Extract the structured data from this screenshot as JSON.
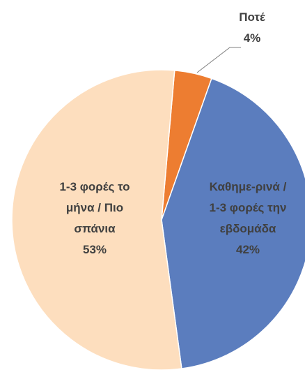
{
  "chart_data": {
    "type": "pie",
    "categories": [
      "Ποτέ",
      "Καθημε-ρινά / 1-3 φορές την εβδομάδα",
      "1-3 φορές το μήνα / Πιο σπάνια"
    ],
    "values": [
      4,
      42,
      53
    ],
    "value_labels": [
      "4%",
      "42%",
      "53%"
    ],
    "colors": [
      "#ED7D31",
      "#5B7DBE",
      "#FDDEBE"
    ]
  }
}
